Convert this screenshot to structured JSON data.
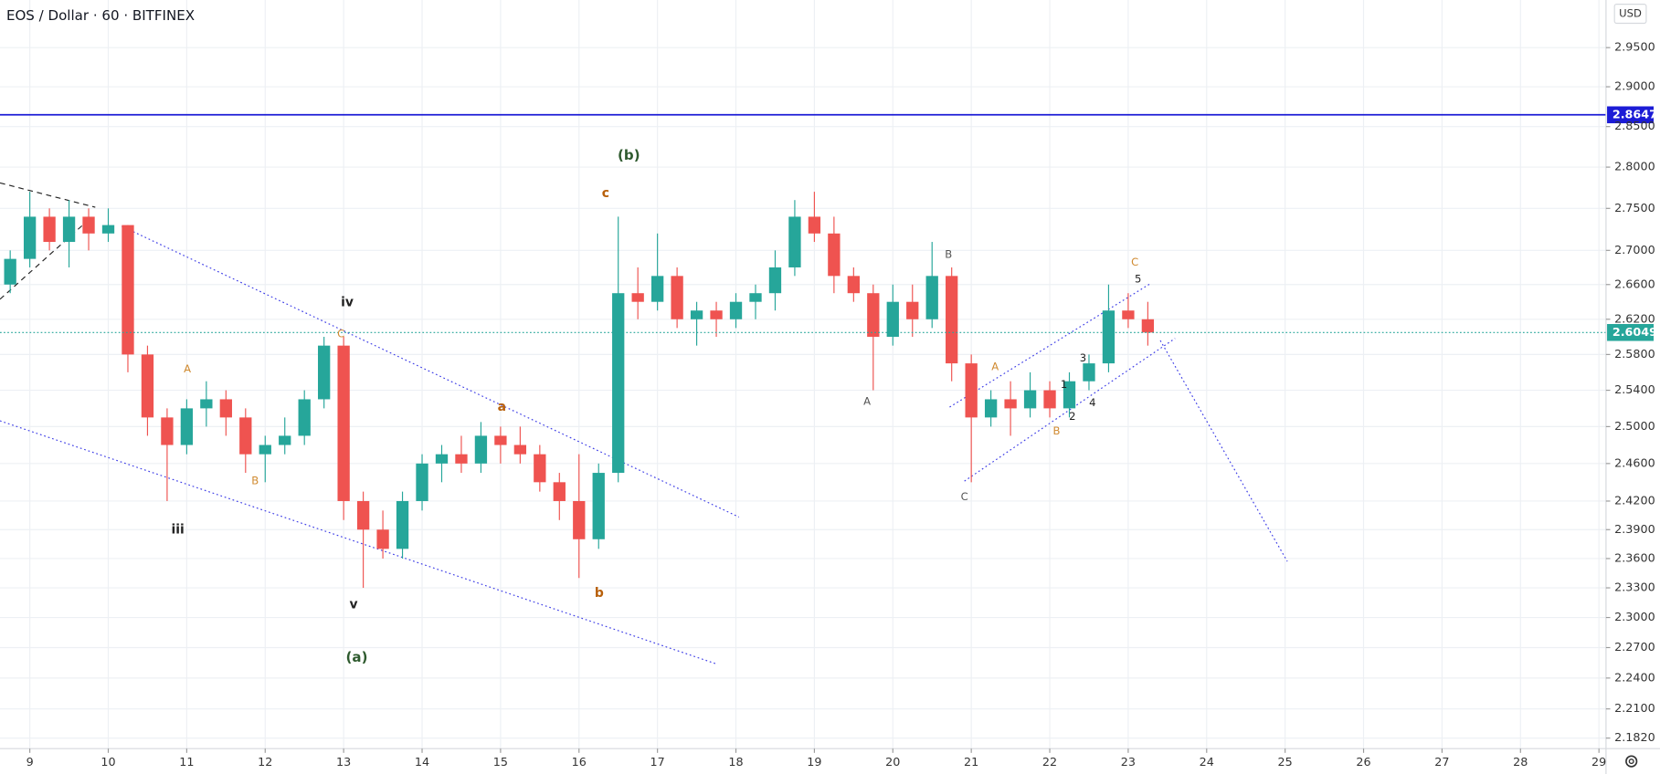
{
  "chart_data": {
    "type": "candlestick",
    "title": "EOS / Dollar · 60 · BITFINEX",
    "currency": "USD",
    "x": [
      8.75,
      9,
      9.25,
      9.5,
      9.75,
      10,
      10.25,
      10.5,
      10.75,
      11,
      11.25,
      11.5,
      11.75,
      12,
      12.25,
      12.5,
      12.75,
      13,
      13.25,
      13.5,
      13.75,
      14,
      14.25,
      14.5,
      14.75,
      15,
      15.25,
      15.5,
      15.75,
      16,
      16.25,
      16.5,
      16.75,
      17,
      17.25,
      17.5,
      17.75,
      18,
      18.25,
      18.5,
      18.75,
      19,
      19.25,
      19.5,
      19.75,
      20,
      20.25,
      20.5,
      20.75,
      21,
      21.25,
      21.5,
      21.75,
      22,
      22.25,
      22.5,
      22.75,
      23,
      23.25
    ],
    "open": [
      2.66,
      2.69,
      2.74,
      2.71,
      2.74,
      2.72,
      2.73,
      2.58,
      2.51,
      2.48,
      2.52,
      2.53,
      2.51,
      2.47,
      2.48,
      2.49,
      2.53,
      2.59,
      2.42,
      2.39,
      2.37,
      2.42,
      2.46,
      2.47,
      2.46,
      2.49,
      2.48,
      2.47,
      2.44,
      2.42,
      2.38,
      2.45,
      2.65,
      2.64,
      2.67,
      2.62,
      2.63,
      2.62,
      2.64,
      2.65,
      2.68,
      2.74,
      2.72,
      2.67,
      2.65,
      2.6,
      2.64,
      2.62,
      2.67,
      2.57,
      2.51,
      2.53,
      2.52,
      2.54,
      2.52,
      2.55,
      2.57,
      2.63,
      2.62
    ],
    "high": [
      2.7,
      2.77,
      2.75,
      2.76,
      2.75,
      2.75,
      2.73,
      2.59,
      2.52,
      2.53,
      2.55,
      2.54,
      2.52,
      2.49,
      2.51,
      2.54,
      2.6,
      2.6,
      2.43,
      2.41,
      2.43,
      2.47,
      2.48,
      2.49,
      2.505,
      2.5,
      2.5,
      2.48,
      2.45,
      2.47,
      2.46,
      2.74,
      2.68,
      2.72,
      2.68,
      2.64,
      2.64,
      2.65,
      2.66,
      2.7,
      2.76,
      2.77,
      2.74,
      2.68,
      2.66,
      2.66,
      2.66,
      2.71,
      2.68,
      2.58,
      2.54,
      2.55,
      2.56,
      2.55,
      2.56,
      2.58,
      2.66,
      2.65,
      2.64
    ],
    "low": [
      2.65,
      2.68,
      2.7,
      2.68,
      2.7,
      2.71,
      2.56,
      2.49,
      2.42,
      2.47,
      2.5,
      2.49,
      2.45,
      2.44,
      2.47,
      2.48,
      2.52,
      2.4,
      2.33,
      2.36,
      2.36,
      2.41,
      2.44,
      2.45,
      2.45,
      2.46,
      2.46,
      2.43,
      2.4,
      2.34,
      2.37,
      2.44,
      2.62,
      2.63,
      2.61,
      2.59,
      2.6,
      2.61,
      2.62,
      2.63,
      2.67,
      2.71,
      2.65,
      2.64,
      2.54,
      2.59,
      2.6,
      2.61,
      2.55,
      2.44,
      2.5,
      2.49,
      2.51,
      2.51,
      2.51,
      2.54,
      2.56,
      2.61,
      2.59
    ],
    "close": [
      2.69,
      2.74,
      2.71,
      2.74,
      2.72,
      2.73,
      2.58,
      2.51,
      2.48,
      2.52,
      2.53,
      2.51,
      2.47,
      2.48,
      2.49,
      2.53,
      2.59,
      2.42,
      2.39,
      2.37,
      2.42,
      2.46,
      2.47,
      2.46,
      2.49,
      2.48,
      2.47,
      2.44,
      2.42,
      2.38,
      2.45,
      2.65,
      2.64,
      2.67,
      2.62,
      2.63,
      2.62,
      2.64,
      2.65,
      2.68,
      2.74,
      2.72,
      2.67,
      2.65,
      2.6,
      2.64,
      2.62,
      2.67,
      2.57,
      2.51,
      2.53,
      2.52,
      2.54,
      2.52,
      2.55,
      2.57,
      2.63,
      2.62,
      2.6049
    ],
    "up_color": "#26a69a",
    "down_color": "#ef5350",
    "xlim": [
      8.62,
      29.09
    ],
    "xticks": [
      9,
      10,
      11,
      12,
      13,
      14,
      15,
      16,
      17,
      18,
      19,
      20,
      21,
      22,
      23,
      24,
      25,
      26,
      27,
      28,
      29
    ],
    "ylim": [
      2.172,
      3.012
    ],
    "log_scale": true,
    "grid": true,
    "yticks": [
      {
        "value": 2.95,
        "label": "2.9500"
      },
      {
        "value": 2.9,
        "label": "2.9000"
      },
      {
        "value": 2.85,
        "label": "2.8500"
      },
      {
        "value": 2.8,
        "label": "2.8000"
      },
      {
        "value": 2.75,
        "label": "2.7500"
      },
      {
        "value": 2.7,
        "label": "2.7000"
      },
      {
        "value": 2.66,
        "label": "2.6600"
      },
      {
        "value": 2.62,
        "label": "2.6200"
      },
      {
        "value": 2.58,
        "label": "2.5800"
      },
      {
        "value": 2.54,
        "label": "2.5400"
      },
      {
        "value": 2.5,
        "label": "2.5000"
      },
      {
        "value": 2.46,
        "label": "2.4600"
      },
      {
        "value": 2.42,
        "label": "2.4200"
      },
      {
        "value": 2.39,
        "label": "2.3900"
      },
      {
        "value": 2.36,
        "label": "2.3600"
      },
      {
        "value": 2.33,
        "label": "2.3300"
      },
      {
        "value": 2.3,
        "label": "2.3000"
      },
      {
        "value": 2.27,
        "label": "2.2700"
      },
      {
        "value": 2.24,
        "label": "2.2400"
      },
      {
        "value": 2.21,
        "label": "2.2100"
      },
      {
        "value": 2.182,
        "label": "2.1820"
      }
    ],
    "price_lines": [
      {
        "value": 2.8647,
        "color": "#1c1cd6",
        "style": "solid"
      },
      {
        "value": 2.6049,
        "color": "#26a69a",
        "style": "dotted"
      }
    ],
    "annotations": [
      {
        "text": "(b)",
        "color": "#2e5a2e"
      },
      {
        "text": "c",
        "color": "#b8600b"
      },
      {
        "text": "iv",
        "color": "#222222"
      },
      {
        "text": "C",
        "color": "#d08a30"
      },
      {
        "text": "A",
        "color": "#d08a30"
      },
      {
        "text": "B",
        "color": "#d08a30"
      },
      {
        "text": "iii",
        "color": "#222222"
      },
      {
        "text": "v",
        "color": "#222222"
      },
      {
        "text": "(a)",
        "color": "#2e5a2e"
      },
      {
        "text": "a",
        "color": "#b8600b"
      },
      {
        "text": "b",
        "color": "#b8600b"
      },
      {
        "text": "A",
        "color": "#555555"
      },
      {
        "text": "B",
        "color": "#555555"
      },
      {
        "text": "C",
        "color": "#555555"
      },
      {
        "text": "A",
        "color": "#d08a30"
      },
      {
        "text": "B",
        "color": "#d08a30"
      },
      {
        "text": "1",
        "color": "#222222"
      },
      {
        "text": "2",
        "color": "#222222"
      },
      {
        "text": "3",
        "color": "#222222"
      },
      {
        "text": "4",
        "color": "#222222"
      },
      {
        "text": "5",
        "color": "#222222"
      },
      {
        "text": "C",
        "color": "#d08a30"
      }
    ]
  }
}
